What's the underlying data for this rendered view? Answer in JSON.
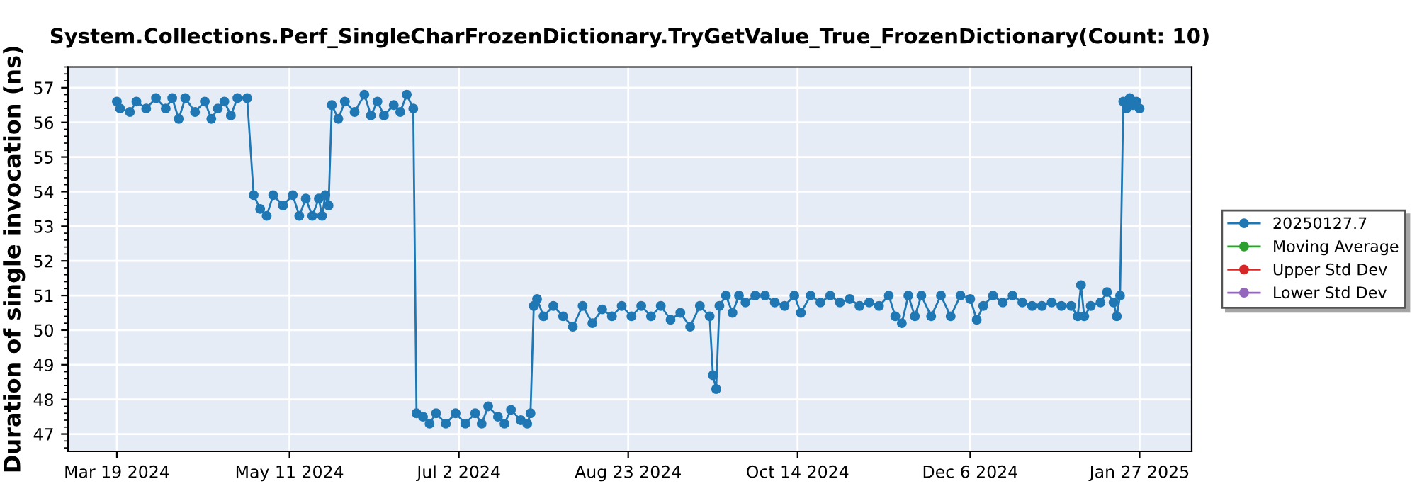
{
  "chart_data": {
    "type": "line",
    "title": "System.Collections.Perf_SingleCharFrozenDictionary.TryGetValue_True_FrozenDictionary(Count: 10)",
    "ylabel": "Duration of single invocation (ns)",
    "x": [
      "2024-03-19",
      "2024-03-20",
      "2024-03-23",
      "2024-03-25",
      "2024-03-28",
      "2024-03-31",
      "2024-04-03",
      "2024-04-05",
      "2024-04-07",
      "2024-04-09",
      "2024-04-12",
      "2024-04-15",
      "2024-04-17",
      "2024-04-19",
      "2024-04-21",
      "2024-04-23",
      "2024-04-25",
      "2024-04-28",
      "2024-04-30",
      "2024-05-02",
      "2024-05-04",
      "2024-05-06",
      "2024-05-09",
      "2024-05-12",
      "2024-05-14",
      "2024-05-16",
      "2024-05-18",
      "2024-05-20",
      "2024-05-21",
      "2024-05-22",
      "2024-05-23",
      "2024-05-24",
      "2024-05-26",
      "2024-05-28",
      "2024-05-31",
      "2024-06-03",
      "2024-06-05",
      "2024-06-07",
      "2024-06-09",
      "2024-06-12",
      "2024-06-14",
      "2024-06-16",
      "2024-06-18",
      "2024-06-19",
      "2024-06-21",
      "2024-06-23",
      "2024-06-25",
      "2024-06-28",
      "2024-07-01",
      "2024-07-04",
      "2024-07-07",
      "2024-07-09",
      "2024-07-11",
      "2024-07-14",
      "2024-07-16",
      "2024-07-18",
      "2024-07-21",
      "2024-07-23",
      "2024-07-24",
      "2024-07-25",
      "2024-07-26",
      "2024-07-28",
      "2024-07-31",
      "2024-08-03",
      "2024-08-06",
      "2024-08-09",
      "2024-08-12",
      "2024-08-15",
      "2024-08-18",
      "2024-08-21",
      "2024-08-24",
      "2024-08-27",
      "2024-08-30",
      "2024-09-02",
      "2024-09-05",
      "2024-09-08",
      "2024-09-11",
      "2024-09-14",
      "2024-09-17",
      "2024-09-18",
      "2024-09-19",
      "2024-09-20",
      "2024-09-22",
      "2024-09-24",
      "2024-09-26",
      "2024-09-28",
      "2024-10-01",
      "2024-10-04",
      "2024-10-07",
      "2024-10-10",
      "2024-10-13",
      "2024-10-15",
      "2024-10-18",
      "2024-10-21",
      "2024-10-24",
      "2024-10-27",
      "2024-10-30",
      "2024-11-02",
      "2024-11-05",
      "2024-11-08",
      "2024-11-11",
      "2024-11-13",
      "2024-11-15",
      "2024-11-17",
      "2024-11-19",
      "2024-11-21",
      "2024-11-24",
      "2024-11-27",
      "2024-11-30",
      "2024-12-03",
      "2024-12-06",
      "2024-12-08",
      "2024-12-10",
      "2024-12-13",
      "2024-12-16",
      "2024-12-19",
      "2024-12-22",
      "2024-12-25",
      "2024-12-28",
      "2024-12-31",
      "2025-01-03",
      "2025-01-06",
      "2025-01-08",
      "2025-01-09",
      "2025-01-10",
      "2025-01-12",
      "2025-01-15",
      "2025-01-17",
      "2025-01-19",
      "2025-01-20",
      "2025-01-21",
      "2025-01-22",
      "2025-01-23",
      "2025-01-24",
      "2025-01-25",
      "2025-01-26",
      "2025-01-27"
    ],
    "series": [
      {
        "name": "20250127.7",
        "color": "#1f77b4",
        "values": [
          56.6,
          56.4,
          56.3,
          56.6,
          56.4,
          56.7,
          56.4,
          56.7,
          56.1,
          56.7,
          56.3,
          56.6,
          56.1,
          56.4,
          56.6,
          56.2,
          56.7,
          56.7,
          53.9,
          53.5,
          53.3,
          53.9,
          53.6,
          53.9,
          53.3,
          53.8,
          53.3,
          53.8,
          53.3,
          53.9,
          53.6,
          56.5,
          56.1,
          56.6,
          56.3,
          56.8,
          56.2,
          56.6,
          56.2,
          56.5,
          56.3,
          56.8,
          56.4,
          47.6,
          47.5,
          47.3,
          47.6,
          47.3,
          47.6,
          47.3,
          47.6,
          47.3,
          47.8,
          47.5,
          47.3,
          47.7,
          47.4,
          47.3,
          47.6,
          50.7,
          50.9,
          50.4,
          50.7,
          50.4,
          50.1,
          50.7,
          50.2,
          50.6,
          50.4,
          50.7,
          50.4,
          50.7,
          50.4,
          50.7,
          50.3,
          50.5,
          50.1,
          50.7,
          50.4,
          48.7,
          48.3,
          50.7,
          51.0,
          50.5,
          51.0,
          50.8,
          51.0,
          51.0,
          50.8,
          50.7,
          51.0,
          50.5,
          51.0,
          50.8,
          51.0,
          50.8,
          50.9,
          50.7,
          50.8,
          50.7,
          51.0,
          50.4,
          50.2,
          51.0,
          50.4,
          51.0,
          50.4,
          51.0,
          50.4,
          51.0,
          50.9,
          50.3,
          50.7,
          51.0,
          50.8,
          51.0,
          50.8,
          50.7,
          50.7,
          50.8,
          50.7,
          50.7,
          50.4,
          51.3,
          50.4,
          50.7,
          50.8,
          51.1,
          50.8,
          50.4,
          51.0,
          56.6,
          56.4,
          56.7,
          56.5,
          56.6,
          56.4
        ]
      },
      {
        "name": "Moving Average",
        "color": "#2ca02c",
        "values": [
          null,
          null,
          null,
          null,
          null,
          null,
          null,
          null,
          null,
          null,
          null,
          null,
          null,
          null,
          null,
          null,
          null,
          null,
          null,
          null,
          null,
          null,
          null,
          null,
          null,
          null,
          null,
          null,
          null,
          null,
          null,
          null,
          null,
          null,
          null,
          null,
          null,
          null,
          null,
          null,
          null,
          null,
          null,
          null,
          null,
          null,
          null,
          null,
          null,
          null,
          null,
          null,
          null,
          null,
          null,
          null,
          null,
          null,
          null,
          null,
          null,
          null,
          null,
          null,
          null,
          null,
          null,
          null,
          null,
          null,
          null,
          null,
          null,
          null,
          null,
          null,
          null,
          null,
          null,
          null,
          null,
          null,
          null,
          null,
          null,
          null,
          null,
          null,
          null,
          null,
          null,
          null,
          null,
          null,
          null,
          null,
          null,
          null,
          null,
          null,
          null,
          null,
          null,
          null,
          null,
          null,
          null,
          null,
          null,
          null,
          null,
          null,
          null,
          null,
          null,
          null,
          null,
          null,
          null,
          null,
          null,
          null,
          null,
          null,
          null,
          null,
          null,
          null,
          null,
          null,
          null,
          null,
          null,
          null,
          null,
          null,
          null
        ]
      },
      {
        "name": "Upper Std Dev",
        "color": "#d62728",
        "values": [
          null,
          null,
          null,
          null,
          null,
          null,
          null,
          null,
          null,
          null,
          null,
          null,
          null,
          null,
          null,
          null,
          null,
          null,
          null,
          null,
          null,
          null,
          null,
          null,
          null,
          null,
          null,
          null,
          null,
          null,
          null,
          null,
          null,
          null,
          null,
          null,
          null,
          null,
          null,
          null,
          null,
          null,
          null,
          null,
          null,
          null,
          null,
          null,
          null,
          null,
          null,
          null,
          null,
          null,
          null,
          null,
          null,
          null,
          null,
          null,
          null,
          null,
          null,
          null,
          null,
          null,
          null,
          null,
          null,
          null,
          null,
          null,
          null,
          null,
          null,
          null,
          null,
          null,
          null,
          null,
          null,
          null,
          null,
          null,
          null,
          null,
          null,
          null,
          null,
          null,
          null,
          null,
          null,
          null,
          null,
          null,
          null,
          null,
          null,
          null,
          null,
          null,
          null,
          null,
          null,
          null,
          null,
          null,
          null,
          null,
          null,
          null,
          null,
          null,
          null,
          null,
          null,
          null,
          null,
          null,
          null,
          null,
          null,
          null,
          null,
          null,
          null,
          null,
          null,
          null,
          null,
          null,
          null,
          null,
          null,
          null,
          null
        ]
      },
      {
        "name": "Lower Std Dev",
        "color": "#9467bd",
        "values": [
          null,
          null,
          null,
          null,
          null,
          null,
          null,
          null,
          null,
          null,
          null,
          null,
          null,
          null,
          null,
          null,
          null,
          null,
          null,
          null,
          null,
          null,
          null,
          null,
          null,
          null,
          null,
          null,
          null,
          null,
          null,
          null,
          null,
          null,
          null,
          null,
          null,
          null,
          null,
          null,
          null,
          null,
          null,
          null,
          null,
          null,
          null,
          null,
          null,
          null,
          null,
          null,
          null,
          null,
          null,
          null,
          null,
          null,
          null,
          null,
          null,
          null,
          null,
          null,
          null,
          null,
          null,
          null,
          null,
          null,
          null,
          null,
          null,
          null,
          null,
          null,
          null,
          null,
          null,
          null,
          null,
          null,
          null,
          null,
          null,
          null,
          null,
          null,
          null,
          null,
          null,
          null,
          null,
          null,
          null,
          null,
          null,
          null,
          null,
          null,
          null,
          null,
          null,
          null,
          null,
          null,
          null,
          null,
          null,
          null,
          null,
          null,
          null,
          null,
          null,
          null,
          null,
          null,
          null,
          null,
          null,
          null,
          null,
          null,
          null,
          null,
          null,
          null,
          null,
          null,
          null,
          null,
          null,
          null,
          null,
          null,
          null
        ]
      }
    ],
    "xlim": [
      "2024-03-04",
      "2025-02-12"
    ],
    "xticks": [
      {
        "value": "2024-03-19",
        "label": "Mar 19 2024"
      },
      {
        "value": "2024-05-11",
        "label": "May 11 2024"
      },
      {
        "value": "2024-07-02",
        "label": "Jul 2 2024"
      },
      {
        "value": "2024-08-23",
        "label": "Aug 23 2024"
      },
      {
        "value": "2024-10-14",
        "label": "Oct 14 2024"
      },
      {
        "value": "2024-12-06",
        "label": "Dec 6 2024"
      },
      {
        "value": "2025-01-27",
        "label": "Jan 27 2025"
      }
    ],
    "ylim": [
      46.5,
      57.6
    ],
    "yticks": [
      47,
      48,
      49,
      50,
      51,
      52,
      53,
      54,
      55,
      56,
      57
    ],
    "grid": true,
    "legend": "right",
    "marker": "circle",
    "line_style": "solid"
  }
}
